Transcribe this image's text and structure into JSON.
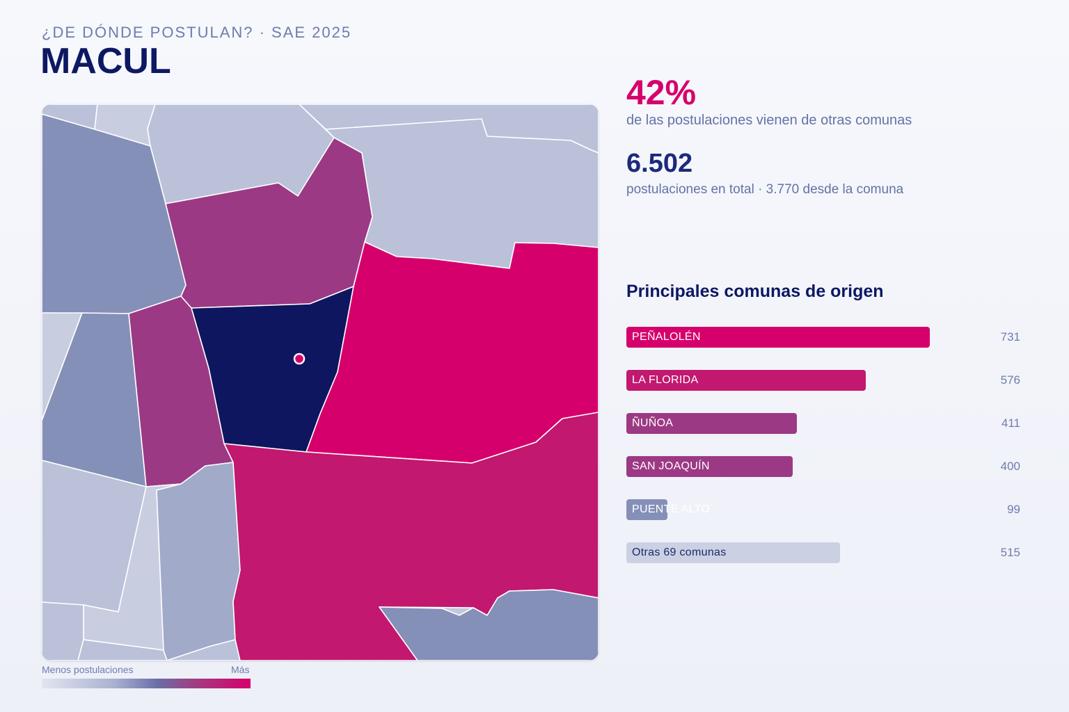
{
  "header": {
    "kicker": "¿DE DÓNDE POSTULAN? · SAE 2025",
    "title": "MACUL"
  },
  "stats": {
    "share_value": "42%",
    "share_caption": "de las postulaciones vienen de otras comunas",
    "total_value": "6.502",
    "total_caption": "postulaciones en total · 3.770 desde la comuna"
  },
  "origins": {
    "title": "Principales comunas de origen",
    "max_value": 731,
    "items": [
      {
        "label": "PEÑALOLÉN",
        "value": 731,
        "color": "#d6006c"
      },
      {
        "label": "LA FLORIDA",
        "value": 576,
        "color": "#c2186f"
      },
      {
        "label": "ÑUÑOA",
        "value": 411,
        "color": "#9c3984"
      },
      {
        "label": "SAN JOAQUÍN",
        "value": 400,
        "color": "#9c3984"
      },
      {
        "label": "PUENTE ALTO",
        "value": 99,
        "color": "#8590b8"
      },
      {
        "label": "Otras 69 comunas",
        "value": 515,
        "color": "#cbd0e3"
      }
    ]
  },
  "legend": {
    "min_label": "Menos postulaciones",
    "max_label": "Más"
  },
  "map": {
    "colors": {
      "macul": "#0e1660",
      "highest": "#d6006c",
      "high": "#c2186f",
      "mid": "#9c3984",
      "low": "#8590b8",
      "lower": "#a1aac9",
      "lowest": "#bac1d9",
      "minimal": "#c8cde0",
      "marker": "#d6006c"
    }
  }
}
